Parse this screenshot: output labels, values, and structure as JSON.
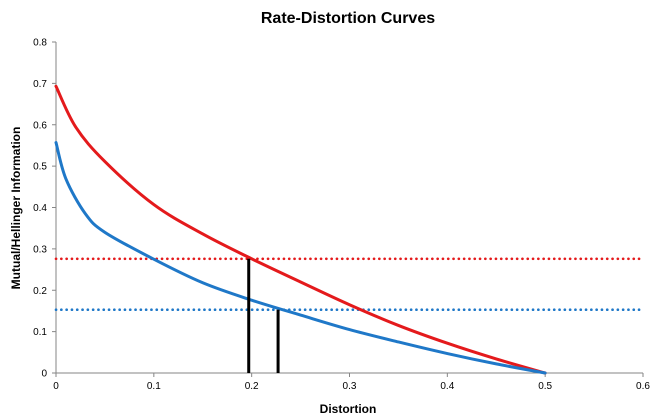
{
  "chart_data": {
    "type": "line",
    "title": "Rate-Distortion Curves",
    "xlabel": "Distortion",
    "ylabel": "Mutual/Hellinger Information",
    "xlim": [
      0,
      0.6
    ],
    "ylim": [
      0,
      0.8
    ],
    "x_ticks": [
      "0",
      "0.1",
      "0.2",
      "0.3",
      "0.4",
      "0.5",
      "0.6"
    ],
    "y_ticks": [
      "0",
      "0.1",
      "0.2",
      "0.3",
      "0.4",
      "0.5",
      "0.6",
      "0.7",
      "0.8"
    ],
    "grid": false,
    "legend": "none",
    "series": [
      {
        "style": "solid",
        "color": "#e41a1c",
        "x": [
          0,
          0.02,
          0.05,
          0.1,
          0.15,
          0.2,
          0.25,
          0.3,
          0.35,
          0.4,
          0.45,
          0.5
        ],
        "y": [
          0.693,
          0.595,
          0.511,
          0.407,
          0.336,
          0.276,
          0.22,
          0.165,
          0.115,
          0.072,
          0.034,
          0.0
        ]
      },
      {
        "style": "solid",
        "color": "#1f78c8",
        "x": [
          0,
          0.01,
          0.03,
          0.05,
          0.1,
          0.15,
          0.2,
          0.25,
          0.3,
          0.35,
          0.4,
          0.45,
          0.5
        ],
        "y": [
          0.557,
          0.47,
          0.385,
          0.34,
          0.275,
          0.218,
          0.176,
          0.14,
          0.105,
          0.075,
          0.047,
          0.022,
          0.0
        ]
      }
    ],
    "hlines": [
      {
        "y": 0.276,
        "style": "dotted",
        "color": "#e41a1c"
      },
      {
        "y": 0.153,
        "style": "dotted",
        "color": "#1f78c8"
      }
    ],
    "vlines": [
      {
        "x": 0.197,
        "y": 0.276,
        "color": "#000000"
      },
      {
        "x": 0.227,
        "y": 0.153,
        "color": "#000000"
      }
    ]
  }
}
